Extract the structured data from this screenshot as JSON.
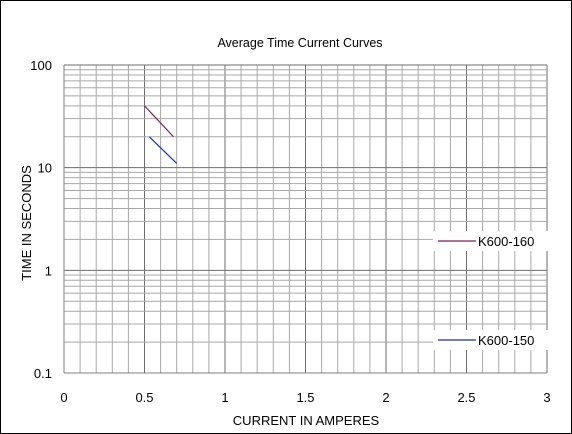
{
  "chart_data": {
    "type": "line",
    "title": "Average Time Current Curves",
    "xlabel": "CURRENT IN AMPERES",
    "ylabel": "TIME IN SECONDS",
    "xlim": [
      0,
      3
    ],
    "ylim": [
      0.1,
      100
    ],
    "yscale": "log",
    "grid": true,
    "x_ticks": [
      "0",
      "0.5",
      "1",
      "1.5",
      "2",
      "2.5",
      "3"
    ],
    "y_ticks": [
      "0.1",
      "1",
      "10",
      "100"
    ],
    "legend": "right",
    "series": [
      {
        "name": "K600-160",
        "color": "#7a1f5c",
        "x": [
          0.5,
          0.68
        ],
        "y": [
          40,
          20
        ]
      },
      {
        "name": "K600-150",
        "color": "#1f2fb0",
        "x": [
          0.53,
          0.7
        ],
        "y": [
          20,
          11
        ]
      }
    ]
  }
}
